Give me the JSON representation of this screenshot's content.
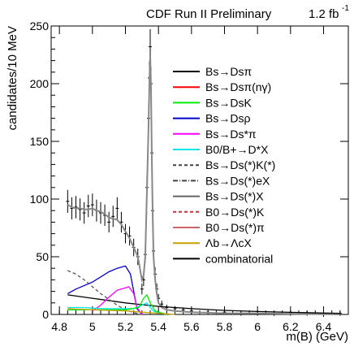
{
  "header": {
    "experiment": "CDF Run II Preliminary",
    "luminosity_base": "1.2 fb",
    "luminosity_exp": "-1"
  },
  "chart_data": {
    "type": "line",
    "xlabel": "m(B) (GeV)",
    "ylabel": "candidates/10 MeV",
    "xlim": [
      4.75,
      6.55
    ],
    "ylim": [
      0,
      250
    ],
    "xticks": [
      4.8,
      5,
      5.2,
      5.4,
      5.6,
      5.8,
      6,
      6.2,
      6.4
    ],
    "yticks": [
      0,
      50,
      100,
      150,
      200,
      250
    ],
    "legend_position": "right",
    "legend": [
      {
        "label": "Bs→Dsπ",
        "color": "#000000",
        "style": "solid"
      },
      {
        "label": "Bs→Dsπ(nγ)",
        "color": "#ff0000",
        "style": "solid"
      },
      {
        "label": "Bs→DsK",
        "color": "#00ee00",
        "style": "solid"
      },
      {
        "label": "Bs→Dsρ",
        "color": "#0000cc",
        "style": "solid"
      },
      {
        "label": "Bs→Ds*π",
        "color": "#ff00ff",
        "style": "solid"
      },
      {
        "label": "B0/B+→D*X",
        "color": "#00e5ee",
        "style": "solid"
      },
      {
        "label": "Bs→Ds(*)K(*)",
        "color": "#444444",
        "style": "dashed"
      },
      {
        "label": "Bs→Ds(*)eX",
        "color": "#444444",
        "style": "dashdot"
      },
      {
        "label": "Bs→Ds(*)X",
        "color": "#666666",
        "style": "solid"
      },
      {
        "label": "B0→Ds(*)K",
        "color": "#cc3333",
        "style": "dashed"
      },
      {
        "label": "B0→Ds(*)π",
        "color": "#cc6666",
        "style": "solid"
      },
      {
        "label": "Λb→ΛcX",
        "color": "#c8a000",
        "style": "solid"
      },
      {
        "label": "combinatorial",
        "color": "#000000",
        "style": "solid"
      }
    ],
    "series": [
      {
        "role": "data",
        "color": "#000000",
        "x": [
          4.85,
          4.875,
          4.9,
          4.925,
          4.95,
          4.975,
          5.0,
          5.025,
          5.05,
          5.075,
          5.1,
          5.125,
          5.15,
          5.175,
          5.2,
          5.225,
          5.25,
          5.275,
          5.3,
          5.31,
          5.32,
          5.33,
          5.34,
          5.345,
          5.35,
          5.355,
          5.36,
          5.365,
          5.37,
          5.38,
          5.39,
          5.4,
          5.42,
          5.45,
          5.5,
          5.55,
          5.6,
          5.7,
          5.8,
          5.9,
          6.0,
          6.1,
          6.2,
          6.3,
          6.4,
          6.5
        ],
        "y": [
          98,
          92,
          93,
          91,
          88,
          94,
          95,
          90,
          88,
          86,
          80,
          85,
          92,
          80,
          70,
          68,
          58,
          50,
          22,
          30,
          52,
          110,
          170,
          205,
          232,
          200,
          140,
          90,
          55,
          35,
          22,
          14,
          9,
          6,
          5,
          4,
          3,
          2,
          2,
          1,
          1,
          1,
          1,
          1,
          0,
          1
        ]
      },
      {
        "role": "fit",
        "color": "#888888",
        "x": [
          4.85,
          4.875,
          4.9,
          4.925,
          4.95,
          4.975,
          5.0,
          5.025,
          5.05,
          5.075,
          5.1,
          5.125,
          5.15,
          5.175,
          5.2,
          5.225,
          5.25,
          5.275,
          5.3,
          5.31,
          5.32,
          5.33,
          5.34,
          5.345,
          5.35,
          5.355,
          5.36,
          5.365,
          5.37,
          5.38,
          5.39,
          5.4,
          5.42,
          5.45,
          5.5,
          5.6,
          5.8,
          6.0,
          6.5
        ],
        "y": [
          95,
          93,
          92,
          92,
          91,
          91,
          92,
          90,
          89,
          87,
          84,
          83,
          82,
          78,
          72,
          66,
          58,
          50,
          30,
          34,
          50,
          105,
          165,
          200,
          225,
          195,
          135,
          85,
          50,
          30,
          18,
          10,
          6,
          4,
          3,
          2,
          1,
          1,
          0
        ]
      },
      {
        "role": "combinatorial",
        "color": "#000000",
        "x": [
          4.85,
          5.0,
          5.2,
          5.4,
          5.6,
          5.8,
          6.0,
          6.2,
          6.4,
          6.5
        ],
        "y": [
          17,
          14,
          10,
          7,
          5,
          3.5,
          2.5,
          1.8,
          1.2,
          1
        ]
      },
      {
        "role": "Bs→Dsρ",
        "color": "#0000cc",
        "x": [
          4.85,
          4.9,
          5.0,
          5.1,
          5.15,
          5.2,
          5.23,
          5.25,
          5.27,
          5.3
        ],
        "y": [
          18,
          22,
          28,
          37,
          40,
          42,
          35,
          20,
          5,
          0
        ]
      },
      {
        "role": "Bs→Ds(*)K(*)",
        "color": "#555555",
        "x": [
          4.85,
          4.9,
          4.95,
          5.0,
          5.05,
          5.1,
          5.15,
          5.2,
          5.25,
          5.3
        ],
        "y": [
          38,
          35,
          30,
          24,
          18,
          13,
          8,
          4,
          1.5,
          0
        ]
      },
      {
        "role": "Bs→Ds*π",
        "color": "#ff00ff",
        "x": [
          5.0,
          5.05,
          5.1,
          5.15,
          5.2,
          5.22,
          5.25,
          5.27,
          5.3
        ],
        "y": [
          3,
          8,
          15,
          21,
          23,
          24,
          18,
          6,
          0
        ]
      },
      {
        "role": "B0/B+→D*X",
        "color": "#00e5ee",
        "x": [
          4.85,
          4.95,
          5.05,
          5.15,
          5.25,
          5.3,
          5.33,
          5.35,
          5.37,
          5.4,
          5.5
        ],
        "y": [
          6,
          6,
          5,
          5,
          5,
          8,
          10,
          6,
          3,
          1,
          0
        ]
      },
      {
        "role": "Bs→DsK",
        "color": "#00ee00",
        "x": [
          4.85,
          5.0,
          5.2,
          5.28,
          5.31,
          5.33,
          5.35,
          5.38,
          5.45
        ],
        "y": [
          4,
          4,
          4,
          6,
          14,
          17,
          10,
          3,
          0
        ]
      },
      {
        "role": "Λb→ΛcX",
        "color": "#c8a000",
        "x": [
          4.85,
          5.0,
          5.2,
          5.3,
          5.4,
          5.5
        ],
        "y": [
          5,
          4,
          3,
          2,
          1,
          0
        ]
      }
    ]
  }
}
